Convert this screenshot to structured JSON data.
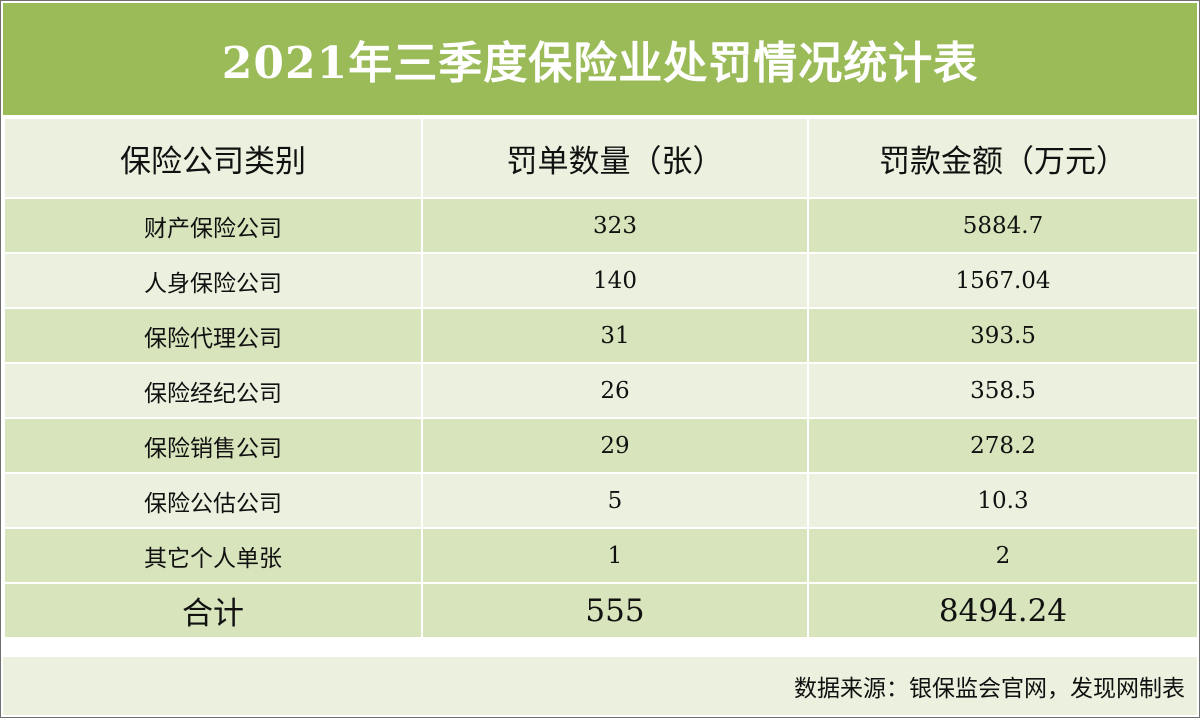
{
  "title": "2021年三季度保险业处罚情况统计表",
  "table": {
    "headers": [
      "保险公司类别",
      "罚单数量（张）",
      "罚款金额（万元）"
    ],
    "rows": [
      {
        "category": "财产保险公司",
        "count": "323",
        "amount": "5884.7"
      },
      {
        "category": "人身保险公司",
        "count": "140",
        "amount": "1567.04"
      },
      {
        "category": "保险代理公司",
        "count": "31",
        "amount": "393.5"
      },
      {
        "category": "保险经纪公司",
        "count": "26",
        "amount": "358.5"
      },
      {
        "category": "保险销售公司",
        "count": "29",
        "amount": "278.2"
      },
      {
        "category": "保险公估公司",
        "count": "5",
        "amount": "10.3"
      },
      {
        "category": "其它个人单张",
        "count": "1",
        "amount": "2"
      }
    ],
    "total": {
      "label": "合计",
      "count": "555",
      "amount": "8494.24"
    }
  },
  "source": "数据来源：银保监会官网，发现网制表",
  "colors": {
    "title_bg": "#9bbb59",
    "row_light": "#ebf1de",
    "row_dark": "#d8e4bc"
  }
}
